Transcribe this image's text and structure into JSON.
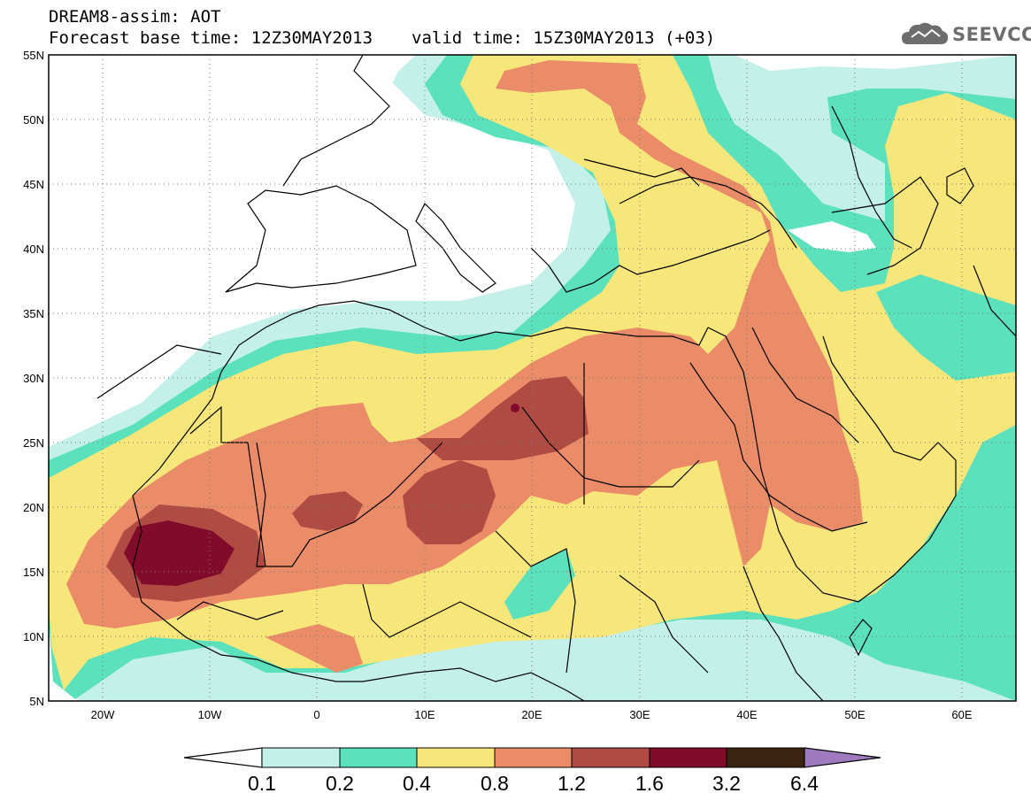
{
  "header": {
    "line1": "DREAM8-assim: AOT",
    "base_time": "Forecast base time: 12Z30MAY2013",
    "valid_time": "valid time: 15Z30MAY2013 (+03)"
  },
  "logo": {
    "text": "SEEVCCC",
    "icon": "cloud-icon"
  },
  "map": {
    "lon_range": [
      -25,
      65
    ],
    "lat_range": [
      5,
      55
    ],
    "lat_ticks": [
      "5N",
      "10N",
      "15N",
      "20N",
      "25N",
      "30N",
      "35N",
      "40N",
      "45N",
      "50N",
      "55N"
    ],
    "lon_ticks": [
      "20W",
      "10W",
      "0",
      "10E",
      "20E",
      "30E",
      "40E",
      "50E",
      "60E"
    ]
  },
  "colorbar": {
    "labels": [
      "0.1",
      "0.2",
      "0.4",
      "0.8",
      "1.2",
      "1.6",
      "3.2",
      "6.4"
    ],
    "colors": [
      "#c4f0ea",
      "#5ce1bd",
      "#f7e67a",
      "#ea8c67",
      "#b04b44",
      "#820a2a",
      "#3a2410",
      "#a07ac0"
    ]
  }
}
